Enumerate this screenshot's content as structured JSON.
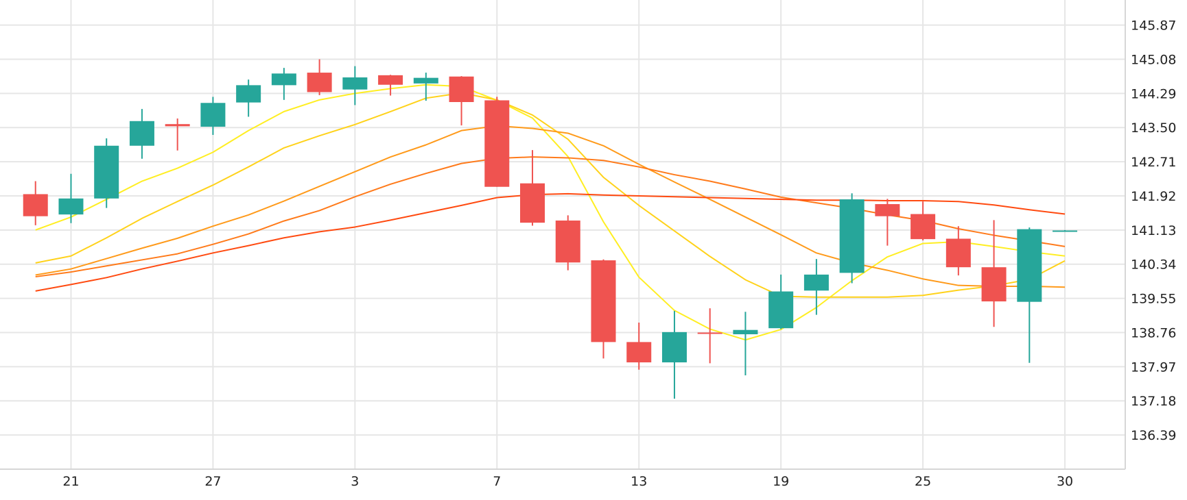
{
  "chart_data": {
    "type": "candlestick",
    "title": "",
    "xlabel": "",
    "ylabel": "",
    "ylim": [
      135.6,
      146.45
    ],
    "y_ticks": [
      "145.87",
      "145.08",
      "144.29",
      "143.50",
      "142.71",
      "141.92",
      "141.13",
      "140.34",
      "139.55",
      "138.76",
      "137.97",
      "137.18",
      "136.39"
    ],
    "x_ticks": [
      {
        "label": "21",
        "index": 1
      },
      {
        "label": "27",
        "index": 5
      },
      {
        "label": "3",
        "index": 9
      },
      {
        "label": "7",
        "index": 13
      },
      {
        "label": "13",
        "index": 17
      },
      {
        "label": "19",
        "index": 21
      },
      {
        "label": "25",
        "index": 25
      },
      {
        "label": "30",
        "index": 29
      }
    ],
    "x_range": [
      -1.0,
      30.7
    ],
    "grid": true,
    "up_color": "#26a69a",
    "down_color": "#ef5350",
    "candles": [
      {
        "o": 141.96,
        "h": 142.26,
        "l": 141.24,
        "c": 141.45
      },
      {
        "o": 141.49,
        "h": 142.43,
        "l": 141.29,
        "c": 141.86
      },
      {
        "o": 141.86,
        "h": 143.25,
        "l": 141.64,
        "c": 143.08
      },
      {
        "o": 143.08,
        "h": 143.93,
        "l": 142.78,
        "c": 143.65
      },
      {
        "o": 143.58,
        "h": 143.71,
        "l": 142.97,
        "c": 143.53
      },
      {
        "o": 143.52,
        "h": 144.21,
        "l": 143.33,
        "c": 144.07
      },
      {
        "o": 144.08,
        "h": 144.61,
        "l": 143.75,
        "c": 144.48
      },
      {
        "o": 144.48,
        "h": 144.88,
        "l": 144.14,
        "c": 144.75
      },
      {
        "o": 144.77,
        "h": 145.08,
        "l": 144.25,
        "c": 144.32
      },
      {
        "o": 144.38,
        "h": 144.92,
        "l": 144.02,
        "c": 144.66
      },
      {
        "o": 144.71,
        "h": 144.72,
        "l": 144.24,
        "c": 144.49
      },
      {
        "o": 144.52,
        "h": 144.77,
        "l": 144.12,
        "c": 144.65
      },
      {
        "o": 144.68,
        "h": 144.69,
        "l": 143.55,
        "c": 144.09
      },
      {
        "o": 144.13,
        "h": 144.21,
        "l": 142.13,
        "c": 142.13
      },
      {
        "o": 142.21,
        "h": 142.98,
        "l": 141.23,
        "c": 141.3
      },
      {
        "o": 141.35,
        "h": 141.47,
        "l": 140.2,
        "c": 140.38
      },
      {
        "o": 140.43,
        "h": 140.45,
        "l": 138.16,
        "c": 138.54
      },
      {
        "o": 138.54,
        "h": 138.99,
        "l": 137.9,
        "c": 138.07
      },
      {
        "o": 138.07,
        "h": 139.26,
        "l": 137.23,
        "c": 138.77
      },
      {
        "o": 138.76,
        "h": 139.32,
        "l": 138.05,
        "c": 138.73
      },
      {
        "o": 138.72,
        "h": 139.24,
        "l": 137.77,
        "c": 138.82
      },
      {
        "o": 138.86,
        "h": 140.1,
        "l": 138.84,
        "c": 139.71
      },
      {
        "o": 139.73,
        "h": 140.46,
        "l": 139.17,
        "c": 140.1
      },
      {
        "o": 140.14,
        "h": 141.98,
        "l": 139.9,
        "c": 141.84
      },
      {
        "o": 141.73,
        "h": 141.85,
        "l": 140.77,
        "c": 141.45
      },
      {
        "o": 141.5,
        "h": 141.79,
        "l": 140.89,
        "c": 140.92
      },
      {
        "o": 140.93,
        "h": 141.22,
        "l": 140.08,
        "c": 140.27
      },
      {
        "o": 140.27,
        "h": 141.36,
        "l": 138.89,
        "c": 139.48
      },
      {
        "o": 139.47,
        "h": 141.19,
        "l": 138.06,
        "c": 141.15
      },
      {
        "o": 141.11,
        "h": 141.13,
        "l": 141.1,
        "c": 141.12
      }
    ],
    "moving_averages": [
      {
        "color": "#ffee22",
        "values": [
          141.13,
          141.43,
          141.84,
          142.26,
          142.56,
          142.93,
          143.43,
          143.87,
          144.14,
          144.29,
          144.4,
          144.49,
          144.45,
          144.13,
          143.72,
          142.83,
          141.32,
          140.04,
          139.27,
          138.84,
          138.59,
          138.83,
          139.34,
          139.96,
          140.51,
          140.82,
          140.86,
          140.75,
          140.63,
          140.53
        ]
      },
      {
        "color": "#ffd21a",
        "values": [
          140.37,
          140.53,
          140.95,
          141.4,
          141.79,
          142.17,
          142.59,
          143.03,
          143.31,
          143.57,
          143.87,
          144.18,
          144.3,
          144.14,
          143.79,
          143.23,
          142.35,
          141.7,
          141.11,
          140.52,
          139.98,
          139.6,
          139.58,
          139.58,
          139.58,
          139.62,
          139.74,
          139.84,
          139.99,
          140.42
        ]
      },
      {
        "color": "#ff9a1a",
        "values": [
          140.09,
          140.23,
          140.47,
          140.71,
          140.94,
          141.22,
          141.48,
          141.8,
          142.14,
          142.48,
          142.82,
          143.1,
          143.43,
          143.54,
          143.48,
          143.37,
          143.08,
          142.65,
          142.24,
          141.84,
          141.43,
          141.02,
          140.6,
          140.37,
          140.2,
          140.0,
          139.85,
          139.83,
          139.83,
          139.81
        ]
      },
      {
        "color": "#ff7a1a",
        "values": [
          140.05,
          140.16,
          140.3,
          140.44,
          140.58,
          140.8,
          141.04,
          141.34,
          141.58,
          141.9,
          142.19,
          142.44,
          142.67,
          142.79,
          142.82,
          142.8,
          142.74,
          142.59,
          142.41,
          142.26,
          142.08,
          141.89,
          141.76,
          141.63,
          141.48,
          141.35,
          141.16,
          141.01,
          140.88,
          140.75
        ]
      },
      {
        "color": "#ff4a10",
        "values": [
          139.72,
          139.87,
          140.03,
          140.23,
          140.41,
          140.6,
          140.77,
          140.95,
          141.09,
          141.2,
          141.36,
          141.53,
          141.7,
          141.88,
          141.95,
          141.97,
          141.94,
          141.92,
          141.9,
          141.88,
          141.86,
          141.84,
          141.82,
          141.82,
          141.81,
          141.81,
          141.79,
          141.71,
          141.6,
          141.5
        ]
      }
    ]
  }
}
